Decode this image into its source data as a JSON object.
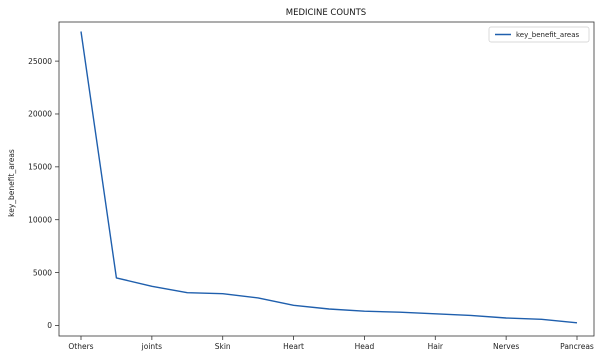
{
  "chart_data": {
    "type": "line",
    "title": "MEDICINE COUNTS",
    "xlabel": "",
    "ylabel": "key_benefit_areas",
    "categories": [
      "Others",
      "",
      "joints",
      "",
      "Skin",
      "",
      "Heart",
      "",
      "Head",
      "",
      "Hair",
      "",
      "Nerves",
      "",
      "Pancreas"
    ],
    "x_tick_labels": [
      "Others",
      "joints",
      "Skin",
      "Heart",
      "Head",
      "Hair",
      "Nerves",
      "Pancreas"
    ],
    "y_ticks": [
      0,
      5000,
      10000,
      15000,
      20000,
      25000
    ],
    "ylim": [
      -1000,
      28700
    ],
    "grid": false,
    "legend_position": "top-right",
    "series": [
      {
        "name": "key_benefit_areas",
        "color": "#1f5fad",
        "values": [
          27800,
          4500,
          3700,
          3100,
          3000,
          2600,
          1900,
          1550,
          1350,
          1250,
          1100,
          950,
          700,
          580,
          250
        ]
      }
    ]
  }
}
